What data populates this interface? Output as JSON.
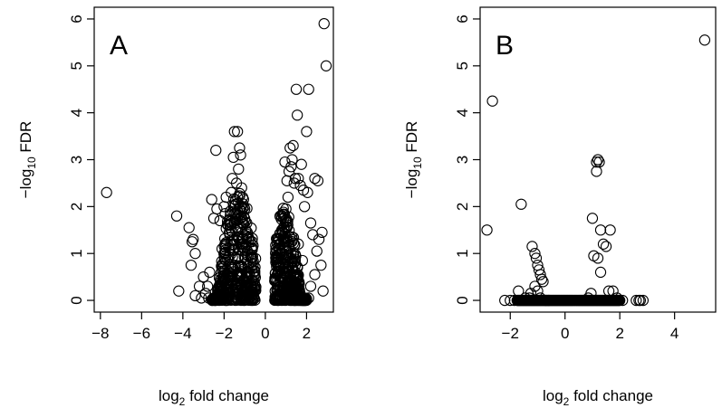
{
  "chart_data": [
    {
      "type": "scatter",
      "panel_label": "A",
      "xlabel": "log2 fold change",
      "ylabel": "−log10 FDR",
      "xlim": [
        -8.3,
        3.3
      ],
      "ylim": [
        -0.25,
        6.25
      ],
      "xticks": [
        -8,
        -6,
        -4,
        -2,
        0,
        2
      ],
      "yticks": [
        0,
        1,
        2,
        3,
        4,
        5,
        6
      ],
      "grid": false,
      "points": [
        [
          -7.7,
          2.3
        ],
        [
          -4.3,
          1.8
        ],
        [
          -4.2,
          0.2
        ],
        [
          -3.7,
          1.55
        ],
        [
          -3.5,
          1.3
        ],
        [
          -3.55,
          1.25
        ],
        [
          -3.4,
          1.0
        ],
        [
          -3.6,
          0.75
        ],
        [
          -3.4,
          0.1
        ],
        [
          -3.0,
          0.5
        ],
        [
          -2.8,
          0.3
        ],
        [
          -2.7,
          0.6
        ],
        [
          -2.6,
          2.15
        ],
        [
          -2.5,
          1.75
        ],
        [
          -2.4,
          3.2
        ],
        [
          -2.35,
          1.95
        ],
        [
          -2.2,
          1.7
        ],
        [
          -2.1,
          1.1
        ],
        [
          -2.0,
          2.0
        ],
        [
          -1.95,
          1.85
        ],
        [
          -1.9,
          2.2
        ],
        [
          -1.8,
          1.6
        ],
        [
          -1.75,
          1.45
        ],
        [
          -1.7,
          1.9
        ],
        [
          -1.65,
          2.3
        ],
        [
          -1.6,
          2.6
        ],
        [
          -1.55,
          3.05
        ],
        [
          -1.5,
          3.6
        ],
        [
          -1.45,
          2.05
        ],
        [
          -1.4,
          2.5
        ],
        [
          -1.35,
          3.6
        ],
        [
          -1.3,
          2.8
        ],
        [
          -1.25,
          3.25
        ],
        [
          -1.2,
          3.1
        ],
        [
          -1.15,
          2.4
        ],
        [
          -1.1,
          2.2
        ],
        [
          -1.05,
          1.8
        ],
        [
          -1.0,
          1.95
        ],
        [
          -0.95,
          1.5
        ],
        [
          -0.9,
          1.65
        ],
        [
          -0.8,
          1.3
        ],
        [
          -0.7,
          0.9
        ],
        [
          -2.9,
          0.15
        ],
        [
          -2.75,
          0.05
        ],
        [
          -3.1,
          0.05
        ],
        [
          -3.2,
          0.3
        ],
        [
          -2.3,
          0.05
        ],
        [
          0.6,
          0.9
        ],
        [
          0.7,
          1.2
        ],
        [
          0.8,
          1.5
        ],
        [
          0.9,
          1.75
        ],
        [
          1.0,
          1.95
        ],
        [
          1.1,
          2.2
        ],
        [
          1.15,
          2.75
        ],
        [
          1.2,
          3.25
        ],
        [
          1.25,
          2.85
        ],
        [
          1.3,
          3.0
        ],
        [
          1.35,
          3.3
        ],
        [
          1.4,
          2.5
        ],
        [
          1.45,
          2.6
        ],
        [
          1.5,
          4.5
        ],
        [
          1.55,
          3.95
        ],
        [
          1.6,
          2.6
        ],
        [
          1.7,
          2.45
        ],
        [
          1.75,
          2.9
        ],
        [
          1.85,
          2.35
        ],
        [
          1.9,
          2.0
        ],
        [
          2.0,
          3.6
        ],
        [
          2.05,
          2.3
        ],
        [
          2.1,
          4.5
        ],
        [
          2.2,
          1.65
        ],
        [
          2.3,
          1.4
        ],
        [
          2.4,
          2.6
        ],
        [
          2.5,
          1.05
        ],
        [
          2.55,
          2.55
        ],
        [
          2.6,
          1.3
        ],
        [
          2.7,
          0.75
        ],
        [
          2.75,
          1.45
        ],
        [
          2.8,
          0.2
        ],
        [
          2.85,
          5.9
        ],
        [
          2.95,
          5.0
        ],
        [
          2.4,
          0.55
        ],
        [
          2.1,
          0.05
        ],
        [
          1.6,
          1.2
        ],
        [
          1.8,
          0.85
        ],
        [
          2.2,
          0.3
        ],
        [
          0.95,
          2.95
        ],
        [
          1.05,
          2.55
        ]
      ],
      "dense_clusters": [
        {
          "x_range": [
            -2.6,
            -0.45
          ],
          "y_max_at_center": 2.3,
          "center": -1.3
        },
        {
          "x_range": [
            0.45,
            2.0
          ],
          "y_max_at_center": 2.0,
          "center": 0.95
        }
      ]
    },
    {
      "type": "scatter",
      "panel_label": "B",
      "xlabel": "log2 fold change",
      "ylabel": "−log10 FDR",
      "xlim": [
        -3.1,
        5.5
      ],
      "ylim": [
        -0.25,
        6.25
      ],
      "xticks": [
        -2,
        0,
        2,
        4
      ],
      "yticks": [
        0,
        1,
        2,
        3,
        4,
        5,
        6
      ],
      "grid": false,
      "points": [
        [
          5.1,
          5.55
        ],
        [
          -2.65,
          4.25
        ],
        [
          -2.85,
          1.5
        ],
        [
          -1.6,
          2.05
        ],
        [
          -1.2,
          1.15
        ],
        [
          -1.1,
          1.0
        ],
        [
          -1.05,
          0.9
        ],
        [
          -1.0,
          0.75
        ],
        [
          -0.95,
          0.65
        ],
        [
          -0.9,
          0.55
        ],
        [
          -0.85,
          0.45
        ],
        [
          -0.8,
          0.4
        ],
        [
          -1.1,
          0.3
        ],
        [
          -1.25,
          0.15
        ],
        [
          -1.7,
          0.2
        ],
        [
          -1.0,
          0.2
        ],
        [
          -0.9,
          0.05
        ],
        [
          -1.3,
          0.05
        ],
        [
          -1.45,
          0.05
        ],
        [
          -1.85,
          0.0
        ],
        [
          -2.0,
          0.0
        ],
        [
          -2.2,
          0.0
        ],
        [
          -0.7,
          0.0
        ],
        [
          -0.6,
          0.0
        ],
        [
          1.0,
          1.75
        ],
        [
          1.15,
          2.95
        ],
        [
          1.2,
          3.0
        ],
        [
          1.15,
          2.75
        ],
        [
          1.25,
          2.95
        ],
        [
          1.05,
          0.95
        ],
        [
          1.2,
          0.9
        ],
        [
          1.3,
          0.6
        ],
        [
          1.4,
          1.2
        ],
        [
          1.3,
          1.5
        ],
        [
          1.65,
          1.5
        ],
        [
          1.5,
          1.15
        ],
        [
          1.6,
          0.2
        ],
        [
          1.75,
          0.2
        ],
        [
          1.9,
          0.05
        ],
        [
          2.6,
          0.0
        ],
        [
          2.7,
          0.0
        ],
        [
          2.75,
          0.0
        ],
        [
          2.85,
          0.0
        ],
        [
          2.1,
          0.0
        ],
        [
          0.95,
          0.15
        ],
        [
          0.85,
          0.05
        ]
      ],
      "baseline_range": [
        -1.75,
        2.0
      ]
    }
  ]
}
